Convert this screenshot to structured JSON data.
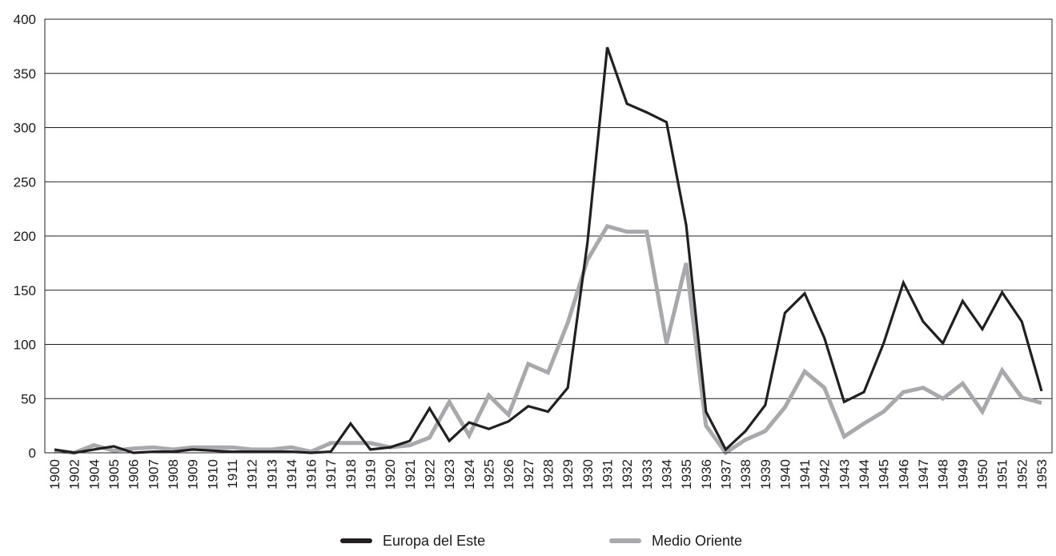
{
  "chart_data": {
    "type": "line",
    "title": "",
    "xlabel": "",
    "ylabel": "",
    "ylim": [
      0,
      400
    ],
    "yticks": [
      0,
      50,
      100,
      150,
      200,
      250,
      300,
      350,
      400
    ],
    "grid": "horizontal",
    "legend_position": "bottom",
    "categories": [
      "1900",
      "1902",
      "1904",
      "1905",
      "1906",
      "1907",
      "1908",
      "1909",
      "1910",
      "1911",
      "1912",
      "1913",
      "1914",
      "1916",
      "1917",
      "1918",
      "1919",
      "1920",
      "1921",
      "1922",
      "1923",
      "1924",
      "1925",
      "1926",
      "1927",
      "1928",
      "1929",
      "1930",
      "1931",
      "1932",
      "1933",
      "1934",
      "1935",
      "1936",
      "1937",
      "1938",
      "1939",
      "1940",
      "1941",
      "1942",
      "1943",
      "1944",
      "1945",
      "1946",
      "1947",
      "1948",
      "1949",
      "1950",
      "1951",
      "1952",
      "1953"
    ],
    "series": [
      {
        "name": "Europa del Este",
        "color": "#231f20",
        "values": [
          3,
          0,
          3,
          6,
          0,
          1,
          1,
          3,
          2,
          1,
          1,
          1,
          1,
          0,
          1,
          27,
          3,
          5,
          11,
          41,
          11,
          28,
          22,
          29,
          43,
          38,
          60,
          194,
          374,
          322,
          314,
          305,
          210,
          38,
          3,
          20,
          44,
          129,
          147,
          106,
          47,
          56,
          101,
          157,
          121,
          101,
          140,
          114,
          148,
          121,
          57
        ]
      },
      {
        "name": "Medio Oriente",
        "color": "#a7a9ac",
        "values": [
          2,
          0,
          7,
          2,
          4,
          5,
          3,
          5,
          5,
          5,
          3,
          3,
          5,
          1,
          9,
          9,
          9,
          5,
          7,
          14,
          47,
          16,
          53,
          35,
          82,
          74,
          120,
          178,
          209,
          204,
          204,
          101,
          175,
          25,
          0,
          12,
          20,
          42,
          75,
          60,
          15,
          27,
          38,
          56,
          60,
          50,
          64,
          38,
          76,
          51,
          46
        ]
      }
    ]
  }
}
